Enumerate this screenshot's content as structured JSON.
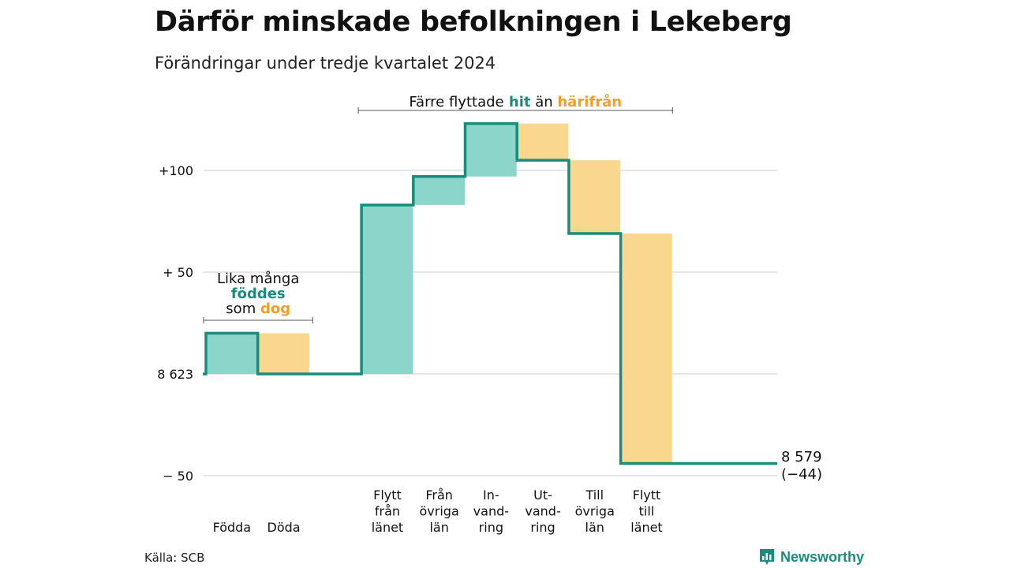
{
  "title": "Därför minskade befolkningen i Lekeberg",
  "subtitle": "Förändringar under tredje kvartalet 2024",
  "source": "Källa: SCB",
  "logo": {
    "name": "Newsworthy",
    "icon": "bar-chart-pin-icon"
  },
  "colors": {
    "teal_line": "#1a8c7b",
    "teal_fill": "#8cd5cb",
    "orange_fill": "#fad78e",
    "teal_text": "#1a8c7b",
    "orange_text": "#f0a02a",
    "grid": "#dddddd"
  },
  "annotations": {
    "top": {
      "text1": "Färre flyttade",
      "highlight1": "hit",
      "text2": "än",
      "highlight2": "härifrån"
    },
    "left": {
      "line1": "Lika många",
      "highlight1": "föddes",
      "text2": "som",
      "highlight2": "dog"
    }
  },
  "end_label": {
    "value": "8 579",
    "change": "(−44)"
  },
  "chart_data": {
    "type": "waterfall",
    "title": "Därför minskade befolkningen i Lekeberg",
    "subtitle": "Förändringar under tredje kvartalet 2024",
    "baseline": 8623,
    "end_value": 8579,
    "net_change": -44,
    "y_ticks": [
      {
        "value": 100,
        "label": "+100"
      },
      {
        "value": 50,
        "label": "+ 50"
      },
      {
        "value": 0,
        "label": "8 623"
      },
      {
        "value": -50,
        "label": "−  50"
      }
    ],
    "ylim": [
      -50,
      100
    ],
    "categories": [
      {
        "label": [
          "Födda"
        ],
        "change": 20,
        "type": "inflow"
      },
      {
        "label": [
          "Döda"
        ],
        "change": -20,
        "type": "outflow"
      },
      {
        "label": [],
        "change": 0,
        "type": "spacer"
      },
      {
        "label": [
          "Flytt",
          "från",
          "länet"
        ],
        "change": 83,
        "type": "inflow"
      },
      {
        "label": [
          "Från",
          "övriga",
          "län"
        ],
        "change": 14,
        "type": "inflow"
      },
      {
        "label": [
          "In-",
          "vand-",
          "ring"
        ],
        "change": 26,
        "type": "inflow"
      },
      {
        "label": [
          "Ut-",
          "vand-",
          "ring"
        ],
        "change": -18,
        "type": "outflow"
      },
      {
        "label": [
          "Till",
          "övriga",
          "län"
        ],
        "change": -36,
        "type": "outflow"
      },
      {
        "label": [
          "Flytt",
          "till",
          "länet"
        ],
        "change": -113,
        "type": "outflow"
      }
    ]
  }
}
